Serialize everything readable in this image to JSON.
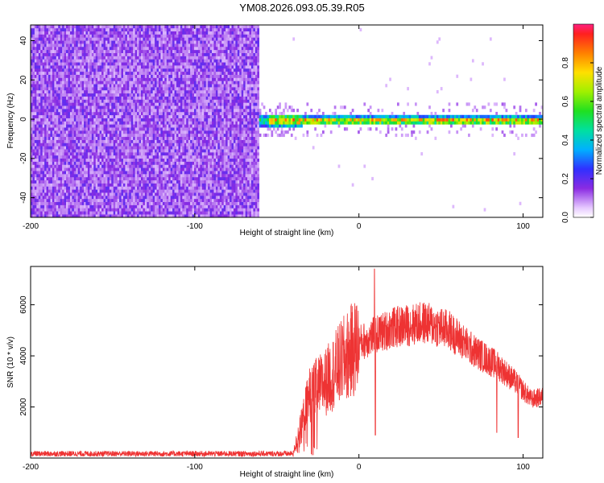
{
  "title": "YM08.2026.093.05.39.R05",
  "chart_data": [
    {
      "type": "heatmap",
      "xlabel": "Height of straight line (km)",
      "ylabel": "Frequency (Hz)",
      "xlim": [
        -200,
        112
      ],
      "ylim": [
        -50,
        48
      ],
      "x_ticks": [
        "-200",
        "-100",
        "0",
        "100"
      ],
      "y_ticks": [
        "-40",
        "-20",
        "0",
        "20",
        "40"
      ],
      "colorbar": {
        "label": "Normalized spectral amplitude",
        "range": [
          0.0,
          1.0
        ],
        "ticks": [
          "0.0",
          "0.2",
          "0.4",
          "0.6",
          "0.8"
        ]
      },
      "regions": [
        {
          "x_range": [
            -200,
            -60
          ],
          "description_value": "broadband noise 0.1-0.3"
        },
        {
          "x_range": [
            -60,
            112
          ],
          "description_value": "narrow peak near 0 Hz, amplitude up to 1.0"
        }
      ]
    },
    {
      "type": "line",
      "xlabel": "Height of straight line (km)",
      "ylabel": "SNR (10 * v/v)",
      "xlim": [
        -200,
        112
      ],
      "ylim": [
        0,
        7500
      ],
      "x_ticks": [
        "-200",
        "-100",
        "0",
        "100"
      ],
      "y_ticks": [
        "2000",
        "4000",
        "6000"
      ],
      "color": "#ee3333",
      "envelope": [
        {
          "x": -200,
          "y": 200
        },
        {
          "x": -40,
          "y": 200
        },
        {
          "x": -30,
          "y": 2500
        },
        {
          "x": -20,
          "y": 3000
        },
        {
          "x": -10,
          "y": 3800
        },
        {
          "x": 0,
          "y": 4500
        },
        {
          "x": 20,
          "y": 5100
        },
        {
          "x": 40,
          "y": 5300
        },
        {
          "x": 55,
          "y": 5000
        },
        {
          "x": 70,
          "y": 4200
        },
        {
          "x": 85,
          "y": 3600
        },
        {
          "x": 95,
          "y": 3000
        },
        {
          "x": 105,
          "y": 2300
        },
        {
          "x": 112,
          "y": 2400
        }
      ],
      "spikes": [
        {
          "x": 9.5,
          "y": 7400
        },
        {
          "x": 10,
          "y": 900
        },
        {
          "x": 84,
          "y": 1000
        },
        {
          "x": 97,
          "y": 800
        }
      ]
    }
  ]
}
